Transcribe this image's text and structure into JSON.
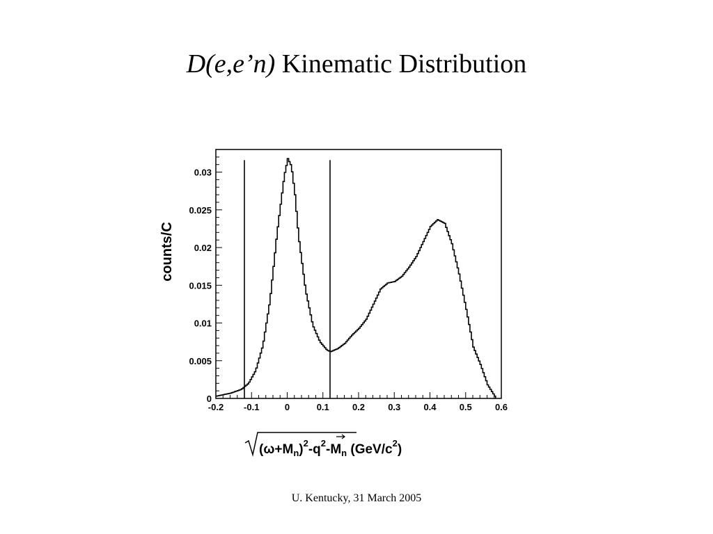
{
  "slide": {
    "title_italic": "D(e,e’n)",
    "title_rest": " Kinematic Distribution",
    "footer": "U. Kentucky, 31 March 2005"
  },
  "chart_data": {
    "type": "line",
    "style": "step histogram",
    "ylabel": "counts/C",
    "xlabel": "√((ω+Mn)²−q⃗²)−Mn (GeV/c²)",
    "xlabel_parts": {
      "open": "(ω+M",
      "n1": "n",
      "close": ")",
      "sq1": "2",
      "minus_q": "-q",
      "sq2": "2",
      "minus_m": "-M",
      "n2": "n",
      "unit_open": " (GeV/c",
      "sq3": "2",
      "unit_close": ")"
    },
    "xlim": [
      -0.2,
      0.6
    ],
    "ylim": [
      0,
      0.033
    ],
    "xticks": [
      -0.2,
      -0.1,
      0,
      0.1,
      0.2,
      0.3,
      0.4,
      0.5,
      0.6
    ],
    "xtick_labels": [
      "-0.2",
      "-0.1",
      "0",
      "0.1",
      "0.2",
      "0.3",
      "0.4",
      "0.5",
      "0.6"
    ],
    "yticks": [
      0,
      0.005,
      0.01,
      0.015,
      0.02,
      0.025,
      0.03
    ],
    "ytick_labels": [
      "0",
      "0.005",
      "0.01",
      "0.015",
      "0.02",
      "0.025",
      "0.03"
    ],
    "grid": false,
    "cut_lines": [
      -0.12,
      0.12
    ],
    "cut_line_top": 0.0316,
    "series": [
      {
        "x": [
          -0.2,
          -0.16,
          -0.13,
          -0.11,
          -0.09,
          -0.07,
          -0.05,
          -0.03,
          -0.01,
          0.0,
          0.01,
          0.02,
          0.03,
          0.05,
          0.07,
          0.09,
          0.11,
          0.12,
          0.14,
          0.16,
          0.18,
          0.2,
          0.22,
          0.24,
          0.26,
          0.28,
          0.3,
          0.32,
          0.34,
          0.36,
          0.38,
          0.4,
          0.42,
          0.44,
          0.46,
          0.48,
          0.5,
          0.52,
          0.54,
          0.56,
          0.58
        ],
        "y": [
          0.0003,
          0.0007,
          0.0012,
          0.002,
          0.0037,
          0.007,
          0.013,
          0.022,
          0.0295,
          0.0318,
          0.0308,
          0.027,
          0.0215,
          0.0143,
          0.0097,
          0.0075,
          0.0064,
          0.0062,
          0.0066,
          0.0073,
          0.0084,
          0.0093,
          0.0105,
          0.0125,
          0.0145,
          0.0153,
          0.0155,
          0.0162,
          0.0174,
          0.0188,
          0.0208,
          0.0228,
          0.0237,
          0.0232,
          0.0205,
          0.0165,
          0.0118,
          0.0068,
          0.0045,
          0.0018,
          0.0003
        ]
      }
    ]
  }
}
